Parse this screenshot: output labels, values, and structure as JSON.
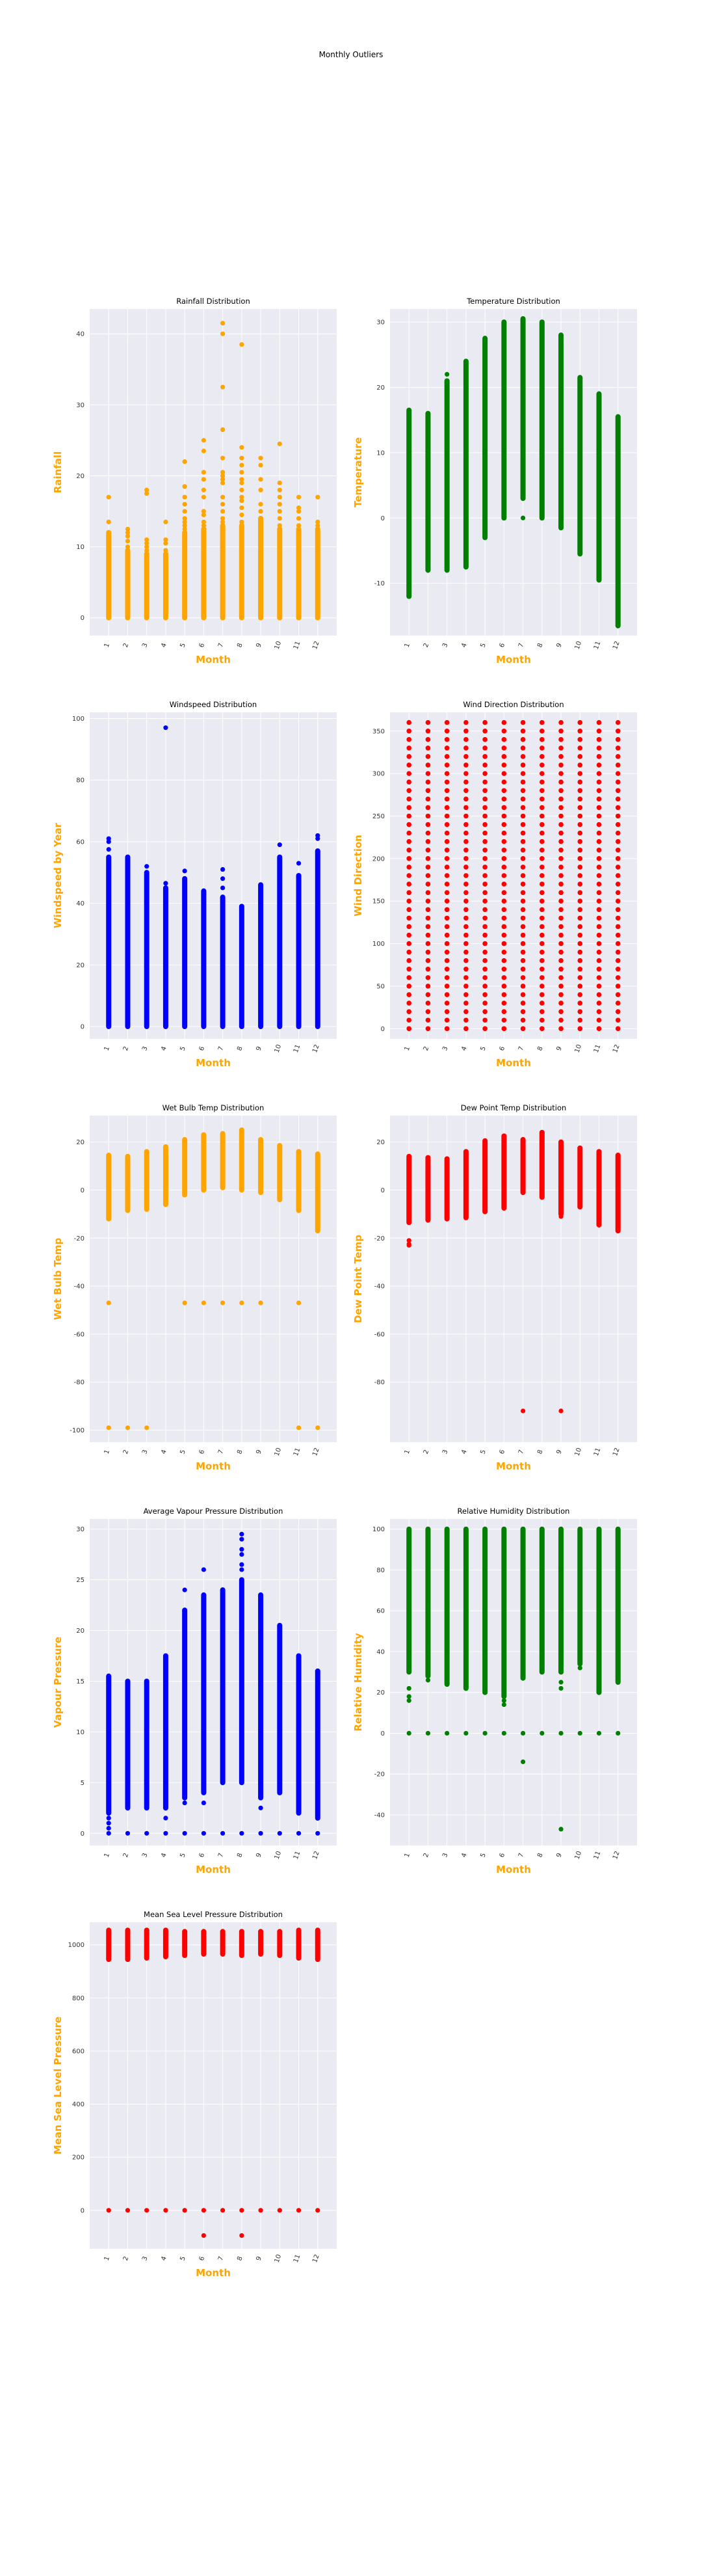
{
  "figure": {
    "title": "Monthly Outliers"
  },
  "chart_data": [
    {
      "type": "scatter",
      "title": "Rainfall Distribution",
      "xlabel": "Month",
      "ylabel": "Rainfall",
      "color": "#FFA500",
      "categories": [
        "1",
        "2",
        "3",
        "4",
        "5",
        "6",
        "7",
        "8",
        "9",
        "10",
        "11",
        "12"
      ],
      "ylim": [
        -2.5,
        43.5
      ],
      "yticks": [
        0,
        10,
        20,
        30,
        40
      ],
      "grid": true,
      "ranges": [
        [
          0,
          12
        ],
        [
          0,
          9.5
        ],
        [
          0,
          9
        ],
        [
          0,
          9
        ],
        [
          0,
          12
        ],
        [
          0,
          12.5
        ],
        [
          0,
          13
        ],
        [
          0,
          13
        ],
        [
          0,
          14
        ],
        [
          0,
          12.5
        ],
        [
          0,
          12.5
        ],
        [
          0,
          12.5
        ]
      ],
      "outliers": [
        [
          13.5,
          17
        ],
        [
          10,
          10.8,
          11.5,
          12,
          12.5
        ],
        [
          9.5,
          10,
          10.5,
          11,
          17.5,
          18
        ],
        [
          9.5,
          10.5,
          11,
          13.5
        ],
        [
          12.5,
          13,
          13.5,
          14,
          15,
          16,
          17,
          18.5,
          22
        ],
        [
          13,
          13.5,
          14.5,
          15,
          17,
          18,
          19.5,
          20.5,
          23.5,
          25
        ],
        [
          13.5,
          14,
          15,
          16,
          17,
          19,
          19.5,
          20,
          20.5,
          22.5,
          26.5,
          32.5,
          40,
          41.5
        ],
        [
          13.5,
          14.5,
          15.5,
          16.5,
          17,
          18,
          19,
          19.5,
          20.5,
          21.5,
          22.5,
          24,
          38.5
        ],
        [
          15,
          16,
          18,
          19.5,
          21.5,
          22.5
        ],
        [
          13,
          14,
          15,
          16,
          17,
          18,
          19,
          24.5
        ],
        [
          13,
          14,
          15,
          15.5,
          17
        ],
        [
          13,
          13.5,
          17
        ]
      ]
    },
    {
      "type": "scatter",
      "title": "Temperature Distribution",
      "xlabel": "Month",
      "ylabel": "Temperature",
      "color": "#008000",
      "categories": [
        "1",
        "2",
        "3",
        "4",
        "5",
        "6",
        "7",
        "8",
        "9",
        "10",
        "11",
        "12"
      ],
      "ylim": [
        -18,
        32
      ],
      "yticks": [
        -10,
        0,
        10,
        20,
        30
      ],
      "grid": true,
      "ranges": [
        [
          -12,
          16.5
        ],
        [
          -8,
          16
        ],
        [
          -8,
          21
        ],
        [
          -7.5,
          24
        ],
        [
          -3,
          27.5
        ],
        [
          0,
          30
        ],
        [
          3,
          30.5
        ],
        [
          0,
          30
        ],
        [
          -1.5,
          28
        ],
        [
          -5.5,
          21.5
        ],
        [
          -9.5,
          19
        ],
        [
          -16.5,
          15.5
        ]
      ],
      "outliers": [
        [],
        [],
        [
          22
        ],
        [],
        [],
        [],
        [
          0
        ],
        [],
        [],
        [],
        [],
        []
      ]
    },
    {
      "type": "scatter",
      "title": "Windspeed Distribution",
      "xlabel": "Month",
      "ylabel": "Windspeed by Year",
      "color": "#0000FF",
      "categories": [
        "1",
        "2",
        "3",
        "4",
        "5",
        "6",
        "7",
        "8",
        "9",
        "10",
        "11",
        "12"
      ],
      "ylim": [
        -4,
        102
      ],
      "yticks": [
        0,
        20,
        40,
        60,
        80,
        100
      ],
      "grid": true,
      "ranges": [
        [
          0,
          55
        ],
        [
          0,
          55
        ],
        [
          0,
          50
        ],
        [
          0,
          45
        ],
        [
          0,
          48
        ],
        [
          0,
          44
        ],
        [
          0,
          42
        ],
        [
          0,
          39
        ],
        [
          0,
          46
        ],
        [
          0,
          55
        ],
        [
          0,
          49
        ],
        [
          0,
          57
        ]
      ],
      "outliers": [
        [
          57.5,
          60,
          61
        ],
        [],
        [
          52
        ],
        [
          46.5,
          97
        ],
        [
          50.5
        ],
        [],
        [
          45,
          48,
          51
        ],
        [],
        [],
        [
          59
        ],
        [
          53
        ],
        [
          61,
          62
        ]
      ]
    },
    {
      "type": "scatter",
      "title": "Wind Direction Distribution",
      "xlabel": "Month",
      "ylabel": "Wind Direction",
      "color": "#FF0000",
      "categories": [
        "1",
        "2",
        "3",
        "4",
        "5",
        "6",
        "7",
        "8",
        "9",
        "10",
        "11",
        "12"
      ],
      "ylim": [
        -12,
        372
      ],
      "yticks": [
        0,
        50,
        100,
        150,
        200,
        250,
        300,
        350
      ],
      "grid": true,
      "discrete": [
        0,
        10,
        20,
        30,
        40,
        50,
        60,
        70,
        80,
        90,
        100,
        110,
        120,
        130,
        140,
        150,
        160,
        170,
        180,
        190,
        200,
        210,
        220,
        230,
        240,
        250,
        260,
        270,
        280,
        290,
        300,
        310,
        320,
        330,
        340,
        350,
        360
      ]
    },
    {
      "type": "scatter",
      "title": "Wet Bulb Temp Distribution",
      "xlabel": "Month",
      "ylabel": "Wet Bulb Temp",
      "color": "#FFA500",
      "categories": [
        "1",
        "2",
        "3",
        "4",
        "5",
        "6",
        "7",
        "8",
        "9",
        "10",
        "11",
        "12"
      ],
      "ylim": [
        -105,
        31
      ],
      "yticks": [
        -100,
        -80,
        -60,
        -40,
        -20,
        0,
        20
      ],
      "grid": true,
      "ranges": [
        [
          -12,
          14.5
        ],
        [
          -8.5,
          14
        ],
        [
          -8,
          16
        ],
        [
          -6,
          18
        ],
        [
          -2,
          21
        ],
        [
          0,
          23
        ],
        [
          1,
          23.5
        ],
        [
          0,
          25
        ],
        [
          -1,
          21
        ],
        [
          -4,
          18.5
        ],
        [
          -8.5,
          16
        ],
        [
          -17,
          15
        ]
      ],
      "outliers": [
        [
          -47,
          -99
        ],
        [
          -99
        ],
        [
          -99
        ],
        [],
        [
          -47
        ],
        [
          -47
        ],
        [
          -47,
          1
        ],
        [
          -47
        ],
        [
          -47
        ],
        [],
        [
          -47,
          -99
        ],
        [
          -99
        ]
      ]
    },
    {
      "type": "scatter",
      "title": "Dew Point Temp Distribution",
      "xlabel": "Month",
      "ylabel": "Dew Point Temp",
      "color": "#FF0000",
      "categories": [
        "1",
        "2",
        "3",
        "4",
        "5",
        "6",
        "7",
        "8",
        "9",
        "10",
        "11",
        "12"
      ],
      "ylim": [
        -105,
        31
      ],
      "yticks": [
        -80,
        -60,
        -40,
        -20,
        0,
        20
      ],
      "grid": true,
      "ranges": [
        [
          -13.5,
          14
        ],
        [
          -12.5,
          13.5
        ],
        [
          -12,
          13
        ],
        [
          -11.5,
          16
        ],
        [
          -9,
          20.5
        ],
        [
          -7.5,
          22.5
        ],
        [
          -1,
          21
        ],
        [
          -3,
          24
        ],
        [
          -10,
          20
        ],
        [
          -7,
          17.5
        ],
        [
          -14.5,
          16
        ],
        [
          -17,
          14.5
        ]
      ],
      "outliers": [
        [
          -21,
          -22.5,
          -23
        ],
        [],
        [],
        [],
        [],
        [],
        [
          -92
        ],
        [],
        [
          -11,
          -92
        ],
        [],
        [],
        []
      ]
    },
    {
      "type": "scatter",
      "title": "Average Vapour Pressure Distribution",
      "xlabel": "Month",
      "ylabel": "Vapour Pressure",
      "color": "#0000FF",
      "categories": [
        "1",
        "2",
        "3",
        "4",
        "5",
        "6",
        "7",
        "8",
        "9",
        "10",
        "11",
        "12"
      ],
      "ylim": [
        -1.2,
        31
      ],
      "yticks": [
        0,
        5,
        10,
        15,
        20,
        25,
        30
      ],
      "grid": true,
      "ranges": [
        [
          2,
          15.5
        ],
        [
          2.5,
          15
        ],
        [
          2.5,
          15
        ],
        [
          2.5,
          17.5
        ],
        [
          3.5,
          22
        ],
        [
          4,
          23.5
        ],
        [
          5,
          24
        ],
        [
          5,
          25
        ],
        [
          3.5,
          23.5
        ],
        [
          4,
          20.5
        ],
        [
          2,
          17.5
        ],
        [
          1.5,
          16
        ]
      ],
      "outliers": [
        [
          0,
          0.5,
          1,
          1.5
        ],
        [
          0
        ],
        [
          0
        ],
        [
          0,
          1.5
        ],
        [
          0,
          3,
          24
        ],
        [
          0,
          3,
          4.5,
          5,
          26
        ],
        [
          0
        ],
        [
          0,
          5.5,
          26,
          26.5,
          27.5,
          28,
          29,
          29.5
        ],
        [
          0,
          2.5,
          4.5
        ],
        [
          0
        ],
        [
          0
        ],
        [
          0
        ]
      ]
    },
    {
      "type": "scatter",
      "title": "Relative Humidity Distribution",
      "xlabel": "Month",
      "ylabel": "Relative Humidity",
      "color": "#008000",
      "categories": [
        "1",
        "2",
        "3",
        "4",
        "5",
        "6",
        "7",
        "8",
        "9",
        "10",
        "11",
        "12"
      ],
      "ylim": [
        -55,
        105
      ],
      "yticks": [
        -40,
        -20,
        0,
        20,
        40,
        60,
        80,
        100
      ],
      "grid": true,
      "ranges": [
        [
          30,
          100
        ],
        [
          28,
          100
        ],
        [
          24,
          100
        ],
        [
          22,
          100
        ],
        [
          20,
          100
        ],
        [
          18,
          100
        ],
        [
          27,
          100
        ],
        [
          30,
          100
        ],
        [
          30,
          100
        ],
        [
          34,
          100
        ],
        [
          20,
          100
        ],
        [
          25,
          100
        ]
      ],
      "outliers": [
        [
          0,
          16,
          18,
          22
        ],
        [
          0,
          26
        ],
        [
          0
        ],
        [
          0
        ],
        [
          0
        ],
        [
          0,
          14,
          16
        ],
        [
          0,
          -14
        ],
        [
          0
        ],
        [
          0,
          22,
          25,
          -47
        ],
        [
          0,
          32
        ],
        [
          0
        ],
        [
          0,
          28
        ]
      ]
    },
    {
      "type": "scatter",
      "title": "Mean Sea Level Pressure Distribution",
      "xlabel": "Month",
      "ylabel": "Mean Sea Level Pressure",
      "color": "#FF0000",
      "categories": [
        "1",
        "2",
        "3",
        "4",
        "5",
        "6",
        "7",
        "8",
        "9",
        "10",
        "11",
        "12"
      ],
      "ylim": [
        -145,
        1085
      ],
      "yticks": [
        0,
        200,
        400,
        600,
        800,
        1000
      ],
      "grid": true,
      "ranges": [
        [
          945,
          1055
        ],
        [
          945,
          1055
        ],
        [
          950,
          1055
        ],
        [
          955,
          1055
        ],
        [
          960,
          1050
        ],
        [
          965,
          1050
        ],
        [
          965,
          1050
        ],
        [
          960,
          1050
        ],
        [
          965,
          1050
        ],
        [
          960,
          1050
        ],
        [
          950,
          1055
        ],
        [
          945,
          1055
        ]
      ],
      "outliers": [
        [
          0
        ],
        [
          0
        ],
        [
          0
        ],
        [
          0
        ],
        [
          0
        ],
        [
          0,
          -95
        ],
        [
          0
        ],
        [
          0,
          -95
        ],
        [
          0
        ],
        [
          0
        ],
        [
          0
        ],
        [
          0
        ]
      ]
    }
  ]
}
